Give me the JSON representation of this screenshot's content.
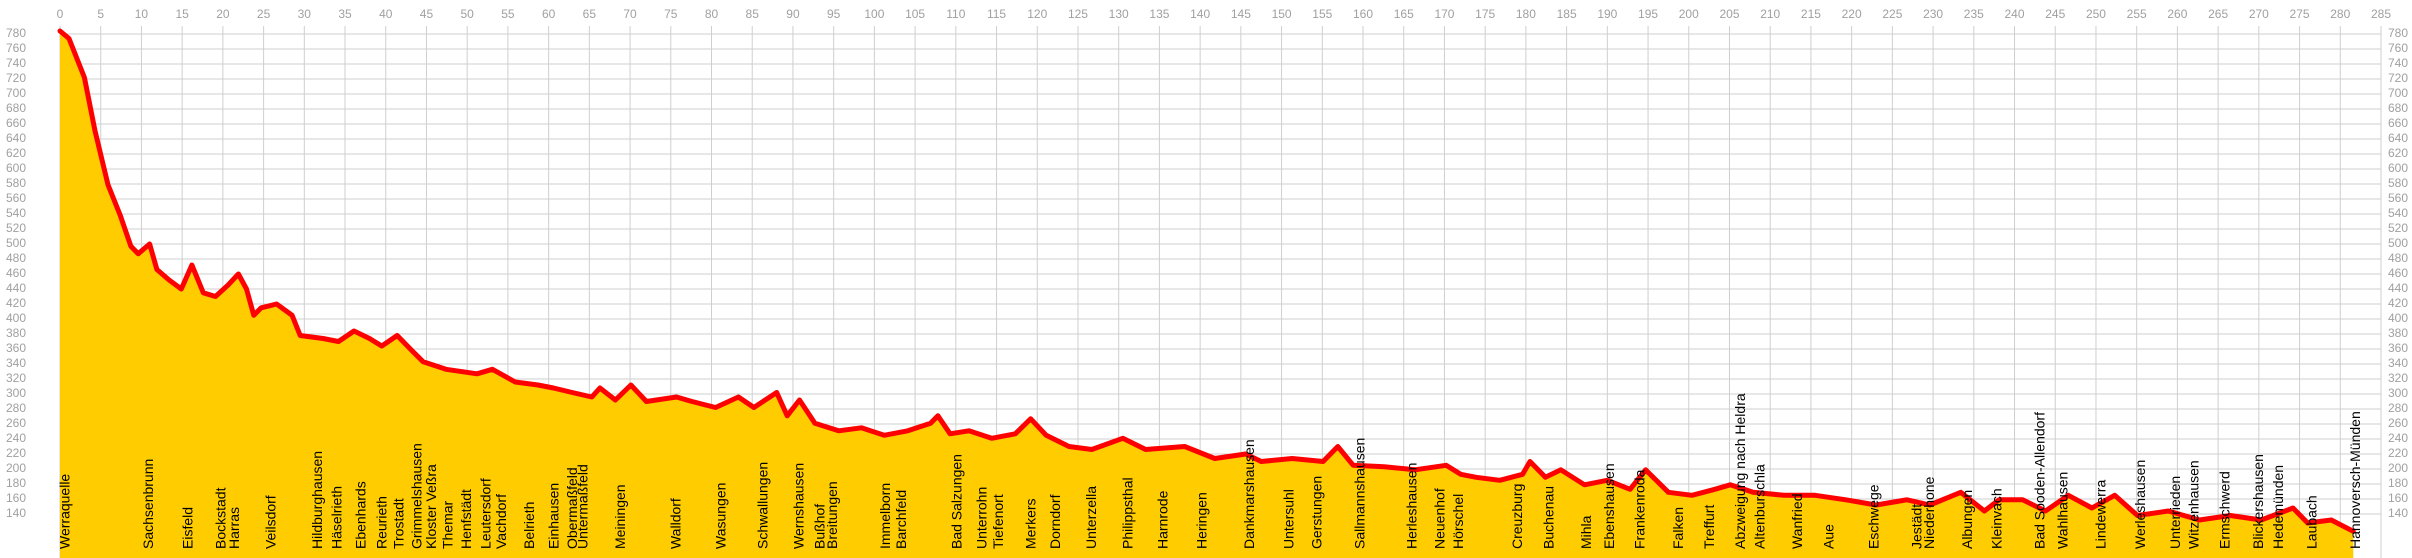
{
  "chart_data": {
    "type": "area",
    "x": [
      0,
      1.1,
      3,
      4.3,
      5.9,
      7.4,
      8.7,
      9.6,
      11,
      11.9,
      13.4,
      14.9,
      16.2,
      17.6,
      19.1,
      20.6,
      21.9,
      22.9,
      23.8,
      24.7,
      26.6,
      28.5,
      29.5,
      32.3,
      34.2,
      36.1,
      38,
      39.5,
      41.4,
      43.2,
      44.6,
      47.4,
      51.2,
      53.1,
      55.9,
      58.7,
      60.6,
      62.9,
      65.3,
      66.3,
      68.2,
      70.1,
      72,
      75.7,
      77.6,
      80.5,
      83.3,
      85.2,
      88,
      89.3,
      90.8,
      92.7,
      95.6,
      98.4,
      101.2,
      104.1,
      106.9,
      107.8,
      109.3,
      111.6,
      114.4,
      117.3,
      119.2,
      121.1,
      123.9,
      126.7,
      130.5,
      133.3,
      138.1,
      141.8,
      145.6,
      147.5,
      151.3,
      155.1,
      156.9,
      158.8,
      162.6,
      166.4,
      170.2,
      172,
      173.9,
      176.8,
      179.6,
      180.5,
      182.4,
      184.3,
      187.2,
      190,
      192.8,
      194.7,
      197.5,
      200.4,
      203.2,
      205.1,
      207.9,
      211.7,
      215.5,
      219.3,
      223,
      226.8,
      229.6,
      233.4,
      236.3,
      238.1,
      241,
      243.8,
      246.6,
      249.5,
      252.3,
      255.1,
      258.9,
      262.7,
      266.5,
      270.3,
      274.2,
      276,
      278.9,
      281.6
    ],
    "values": [
      784,
      774,
      722,
      651,
      579,
      538,
      497,
      487,
      500,
      466,
      452,
      440,
      472,
      435,
      430,
      445,
      460,
      440,
      405,
      415,
      420,
      405,
      378,
      374,
      370,
      384,
      374,
      364,
      378,
      358,
      343,
      333,
      327,
      333,
      316,
      312,
      308,
      302,
      296,
      308,
      292,
      312,
      290,
      296,
      290,
      282,
      296,
      282,
      302,
      271,
      292,
      261,
      251,
      255,
      245,
      251,
      261,
      271,
      247,
      251,
      241,
      247,
      267,
      245,
      230,
      226,
      241,
      226,
      230,
      214,
      220,
      210,
      214,
      210,
      230,
      205,
      203,
      199,
      205,
      193,
      189,
      185,
      193,
      210,
      189,
      199,
      179,
      185,
      173,
      199,
      169,
      165,
      173,
      179,
      169,
      165,
      165,
      159,
      152,
      159,
      152,
      169,
      144,
      159,
      159,
      144,
      165,
      148,
      165,
      138,
      144,
      132,
      138,
      132,
      148,
      128,
      132,
      117
    ],
    "fill_color": "#ffcc00",
    "line_color": "#ff0000",
    "xlim": [
      0,
      285
    ],
    "xticks": [
      0,
      5,
      10,
      15,
      20,
      25,
      30,
      35,
      40,
      45,
      50,
      55,
      60,
      65,
      70,
      75,
      80,
      85,
      90,
      95,
      100,
      105,
      110,
      115,
      120,
      125,
      130,
      135,
      140,
      145,
      150,
      155,
      160,
      165,
      170,
      175,
      180,
      185,
      190,
      195,
      200,
      205,
      210,
      215,
      220,
      225,
      230,
      235,
      240,
      245,
      250,
      255,
      260,
      265,
      270,
      275,
      280,
      285
    ],
    "ylim": [
      140,
      780
    ],
    "yticks": [
      140,
      160,
      180,
      200,
      220,
      240,
      260,
      280,
      300,
      320,
      340,
      360,
      380,
      400,
      420,
      440,
      460,
      480,
      500,
      520,
      540,
      560,
      580,
      600,
      620,
      640,
      660,
      680,
      700,
      720,
      740,
      760,
      780
    ],
    "grid": true,
    "annotations": [
      {
        "text": "Werraquelle",
        "x": 0
      },
      {
        "text": "Sachsenbrunn",
        "x": 10.2
      },
      {
        "text": "Eisfeld",
        "x": 15.1
      },
      {
        "text": "Bockstadt",
        "x": 19.1
      },
      {
        "text": "Harras",
        "x": 20.8
      },
      {
        "text": "Veilsdorf",
        "x": 25.3
      },
      {
        "text": "Hildburghausen",
        "x": 31
      },
      {
        "text": "Häselrieth",
        "x": 33.4
      },
      {
        "text": "Ebenhards",
        "x": 36.3
      },
      {
        "text": "Reurieth",
        "x": 38.9
      },
      {
        "text": "Trostadt",
        "x": 41
      },
      {
        "text": "Grimmelshausen",
        "x": 43.2
      },
      {
        "text": "Kloster Veßra",
        "x": 45
      },
      {
        "text": "Themar",
        "x": 47
      },
      {
        "text": "Henfstädt",
        "x": 49.3
      },
      {
        "text": "Leutersdorf",
        "x": 51.7
      },
      {
        "text": "Vachdorf",
        "x": 53.6
      },
      {
        "text": "Belrieth",
        "x": 57
      },
      {
        "text": "Einhausen",
        "x": 60
      },
      {
        "text": "Obermaßfeld",
        "x": 62.3
      },
      {
        "text": "Untermaßfeld",
        "x": 63.6
      },
      {
        "text": "Meiningen",
        "x": 68.2
      },
      {
        "text": "Walldorf",
        "x": 75
      },
      {
        "text": "Wasungen",
        "x": 80.5
      },
      {
        "text": "Schwallungen",
        "x": 85.7
      },
      {
        "text": "Wernshausen",
        "x": 90.1
      },
      {
        "text": "Bußhof",
        "x": 92.7
      },
      {
        "text": "Breitungen",
        "x": 94.2
      },
      {
        "text": "Immelborn",
        "x": 100.7
      },
      {
        "text": "Barchfeld",
        "x": 102.7
      },
      {
        "text": "Bad Salzungen",
        "x": 109.5
      },
      {
        "text": "Unterrohn",
        "x": 112.6
      },
      {
        "text": "Tiefenort",
        "x": 114.6
      },
      {
        "text": "Merkers",
        "x": 118.6
      },
      {
        "text": "Dorndorf",
        "x": 121.6
      },
      {
        "text": "Unterzella",
        "x": 126
      },
      {
        "text": "Philippsthal",
        "x": 130.5
      },
      {
        "text": "Harnrode",
        "x": 134.8
      },
      {
        "text": "Heringen",
        "x": 139.6
      },
      {
        "text": "Dankmarshausen",
        "x": 145.4
      },
      {
        "text": "Untersuhl",
        "x": 150.3
      },
      {
        "text": "Gerstungen",
        "x": 153.7
      },
      {
        "text": "Sallmannshausen",
        "x": 159
      },
      {
        "text": "Herleshausen",
        "x": 165.4
      },
      {
        "text": "Neuenhof",
        "x": 168.8
      },
      {
        "text": "Hörschel",
        "x": 171.1
      },
      {
        "text": "Creuzburg",
        "x": 178.3
      },
      {
        "text": "Buchenau",
        "x": 182.2
      },
      {
        "text": "Mihla",
        "x": 186.8
      },
      {
        "text": "Ebenshausen",
        "x": 189.6
      },
      {
        "text": "Frankenroda",
        "x": 193.4
      },
      {
        "text": "Falken",
        "x": 198.1
      },
      {
        "text": "Treffurt",
        "x": 201.9
      },
      {
        "text": "Abzweigung nach Heldra",
        "x": 205.7
      },
      {
        "text": "Altenburschla",
        "x": 208.1
      },
      {
        "text": "Wanfried",
        "x": 212.7
      },
      {
        "text": "Aue",
        "x": 216.6
      },
      {
        "text": "Eschwege",
        "x": 222.1
      },
      {
        "text": "Jestädt",
        "x": 227.4
      },
      {
        "text": "Niederhone",
        "x": 228.9
      },
      {
        "text": "Albungen",
        "x": 233.6
      },
      {
        "text": "Kleinvach",
        "x": 237.2
      },
      {
        "text": "Bad Sooden-Allendorf",
        "x": 242.5
      },
      {
        "text": "Wahlhausen",
        "x": 245.3
      },
      {
        "text": "Lindewerra",
        "x": 250
      },
      {
        "text": "Werleshausen",
        "x": 254.8
      },
      {
        "text": "Unterrieden",
        "x": 259.1
      },
      {
        "text": "Witzenhausen",
        "x": 261.4
      },
      {
        "text": "Ermschwerd",
        "x": 265.2
      },
      {
        "text": "Blickershausen",
        "x": 269.3
      },
      {
        "text": "Hedemünden",
        "x": 271.8
      },
      {
        "text": "Laubach",
        "x": 275.9
      },
      {
        "text": "Hannoversch-Münden",
        "x": 281.2
      }
    ]
  }
}
